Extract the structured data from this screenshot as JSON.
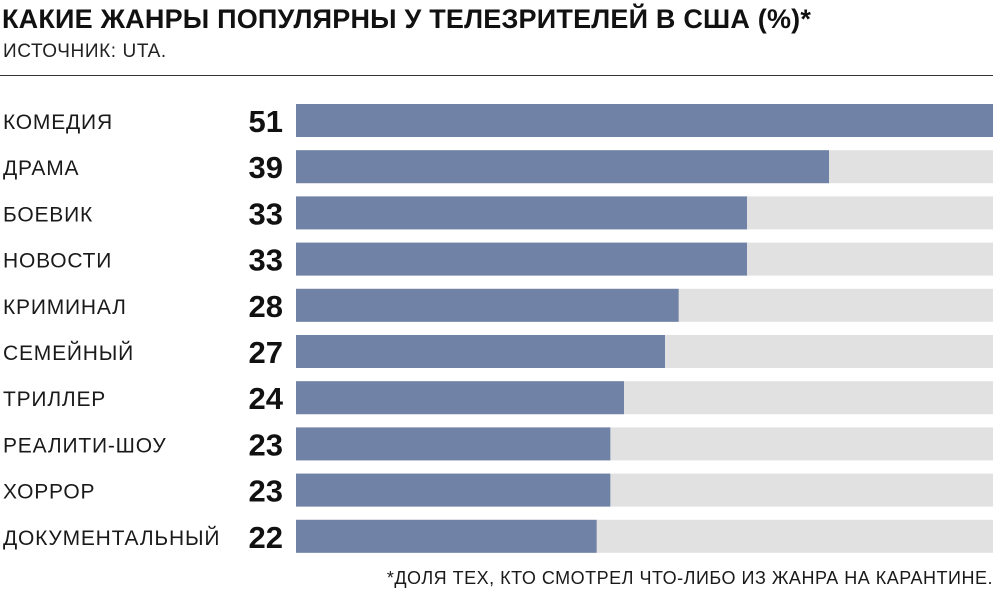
{
  "chart_data": {
    "type": "bar",
    "orientation": "horizontal",
    "title": "КАКИЕ ЖАНРЫ ПОПУЛЯРНЫ У ТЕЛЕЗРИТЕЛЕЙ В США (%)*",
    "subtitle": "ИСТОЧНИК: UTA.",
    "categories": [
      "КОМЕДИЯ",
      "ДРАМА",
      "БОЕВИК",
      "НОВОСТИ",
      "КРИМИНАЛ",
      "СЕМЕЙНЫЙ",
      "ТРИЛЛЕР",
      "РЕАЛИТИ-ШОУ",
      "ХОРРОР",
      "ДОКУМЕНТАЛЬНЫЙ"
    ],
    "values": [
      51,
      39,
      33,
      33,
      28,
      27,
      24,
      23,
      23,
      22
    ],
    "xlim": [
      0,
      51
    ],
    "grid": false,
    "footnote": "*ДОЛЯ ТЕХ, КТО СМОТРЕЛ ЧТО-ЛИБО ИЗ ЖАНРА НА КАРАНТИНЕ.",
    "colors": {
      "bar": "#7082a6",
      "track": "#e1e1e1"
    }
  }
}
